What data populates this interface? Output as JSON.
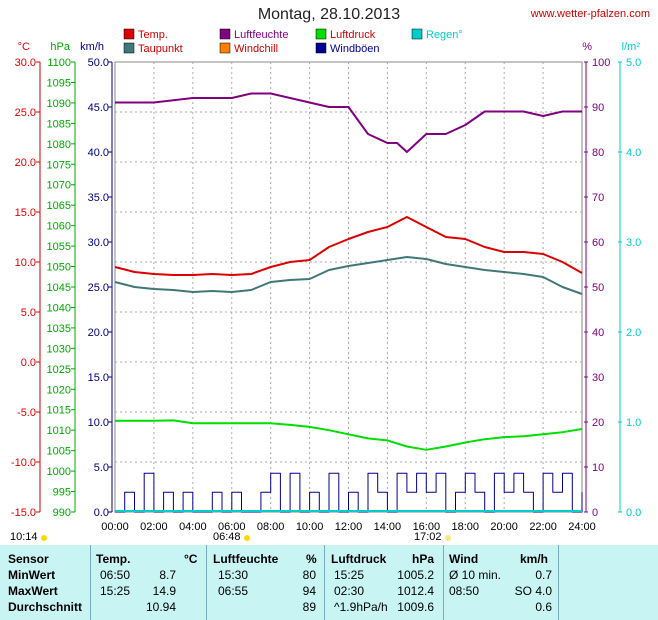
{
  "header": {
    "title": "Montag, 28.10.2013",
    "url": "www.wetter-pfalzen.com"
  },
  "legend": [
    {
      "label": "Temp.",
      "color": "#dd0000"
    },
    {
      "label": "Luftfeuchte",
      "color": "#800080"
    },
    {
      "label": "Luftdruck",
      "color": "#00dd00"
    },
    {
      "label": "Regen°",
      "color": "#00cccc"
    },
    {
      "label": "Taupunkt",
      "color": "#407878"
    },
    {
      "label": "Windchill",
      "color": "#ff8000"
    },
    {
      "label": "Windböen",
      "color": "#000090"
    }
  ],
  "sun": {
    "sunrise_label": "10:14",
    "sunrise_time": "06:48",
    "sunset_time": "17:02"
  },
  "chart_data": {
    "type": "line",
    "x_range": [
      "00:00",
      "24:00"
    ],
    "x_ticks": [
      "00:00",
      "02:00",
      "04:00",
      "06:00",
      "08:00",
      "10:00",
      "12:00",
      "14:00",
      "16:00",
      "18:00",
      "20:00",
      "22:00",
      "24:00"
    ],
    "axes": {
      "temp": {
        "unit": "°C",
        "ticks": [
          "30.0",
          "25.0",
          "20.0",
          "15.0",
          "10.0",
          "5.0",
          "0.0",
          "-5.0",
          "-10.0",
          "-15.0"
        ],
        "range": [
          -15,
          30
        ],
        "color": "#dd0000"
      },
      "pressure": {
        "unit": "hPa",
        "ticks": [
          "1100",
          "1095",
          "1090",
          "1085",
          "1080",
          "1075",
          "1070",
          "1065",
          "1060",
          "1055",
          "1050",
          "1045",
          "1040",
          "1035",
          "1030",
          "1025",
          "1020",
          "1015",
          "1010",
          "1005",
          "1000",
          "995",
          "990"
        ],
        "range": [
          990,
          1100
        ],
        "color": "#00aa00"
      },
      "wind": {
        "unit": "km/h",
        "ticks": [
          "50.0",
          "45.0",
          "40.0",
          "35.0",
          "30.0",
          "25.0",
          "20.0",
          "15.0",
          "10.0",
          "5.0",
          "0.0"
        ],
        "range": [
          0,
          50
        ],
        "color": "#000080"
      },
      "humidity": {
        "unit": "%",
        "ticks": [
          "100",
          "90",
          "80",
          "70",
          "60",
          "50",
          "40",
          "30",
          "20",
          "10",
          "0"
        ],
        "range": [
          0,
          100
        ],
        "color": "#800080"
      },
      "rain": {
        "unit": "l/m²",
        "ticks": [
          "5.0",
          "4.0",
          "3.0",
          "2.0",
          "1.0",
          "0.0"
        ],
        "range": [
          0,
          5
        ],
        "color": "#00cccc"
      }
    },
    "series": [
      {
        "name": "Temp.",
        "axis": "temp",
        "color": "#dd0000",
        "x": [
          0,
          1,
          2,
          3,
          4,
          5,
          6,
          7,
          8,
          9,
          10,
          11,
          12,
          13,
          14,
          14.5,
          15,
          15.5,
          16,
          17,
          18,
          19,
          20,
          21,
          22,
          23,
          24
        ],
        "y": [
          9.5,
          9.0,
          8.8,
          8.7,
          8.7,
          8.8,
          8.7,
          8.8,
          9.5,
          10.0,
          10.2,
          11.5,
          12.3,
          13.0,
          13.5,
          14.0,
          14.5,
          14.0,
          13.5,
          12.5,
          12.3,
          11.5,
          11.0,
          11.0,
          10.8,
          10.0,
          8.9
        ]
      },
      {
        "name": "Taupunkt",
        "axis": "temp",
        "color": "#407878",
        "x": [
          0,
          1,
          2,
          3,
          4,
          5,
          6,
          7,
          8,
          9,
          10,
          11,
          12,
          13,
          14,
          15,
          16,
          17,
          18,
          19,
          20,
          21,
          22,
          23,
          24
        ],
        "y": [
          8.0,
          7.5,
          7.3,
          7.2,
          7.0,
          7.1,
          7.0,
          7.2,
          8.0,
          8.2,
          8.3,
          9.2,
          9.6,
          9.9,
          10.2,
          10.5,
          10.3,
          9.8,
          9.5,
          9.2,
          9.0,
          8.8,
          8.5,
          7.5,
          6.8
        ]
      },
      {
        "name": "Luftfeuchte",
        "axis": "humidity",
        "color": "#800080",
        "x": [
          0,
          2,
          4,
          6,
          7,
          8,
          9,
          10,
          11,
          12,
          12.5,
          13,
          14,
          14.5,
          15,
          15.5,
          16,
          17,
          18,
          19,
          20,
          21,
          22,
          23,
          24
        ],
        "y": [
          91,
          91,
          92,
          92,
          93,
          93,
          92,
          91,
          90,
          90,
          87,
          84,
          82,
          82,
          80,
          82,
          84,
          84,
          86,
          89,
          89,
          89,
          88,
          89,
          89
        ]
      },
      {
        "name": "Luftdruck",
        "axis": "pressure",
        "color": "#00dd00",
        "x": [
          0,
          2,
          3,
          4,
          6,
          8,
          9,
          10,
          11,
          12,
          13,
          14,
          15,
          16,
          17,
          18,
          19,
          20,
          21,
          22,
          23,
          24
        ],
        "y": [
          1012.3,
          1012.3,
          1012.4,
          1011.7,
          1011.7,
          1011.7,
          1011.3,
          1010.8,
          1010.0,
          1009.0,
          1008.0,
          1007.5,
          1006.0,
          1005.2,
          1006.0,
          1007.0,
          1007.8,
          1008.3,
          1008.5,
          1009.0,
          1009.5,
          1010.3
        ]
      },
      {
        "name": "Windböen",
        "axis": "wind",
        "color": "#000090",
        "x": [
          0,
          0.5,
          1,
          1.5,
          2,
          2.5,
          3,
          3.5,
          4,
          4.5,
          5,
          5.5,
          6,
          6.5,
          7,
          7.5,
          8,
          8.5,
          9,
          9.5,
          10,
          10.5,
          11,
          11.5,
          12,
          12.5,
          13,
          13.5,
          14,
          14.5,
          15,
          15.5,
          16,
          16.5,
          17,
          17.5,
          18,
          18.5,
          19,
          19.5,
          20,
          20.5,
          21,
          21.5,
          22,
          22.5,
          23,
          23.5,
          24
        ],
        "y": [
          0,
          2.2,
          0,
          4.3,
          0,
          2.2,
          0,
          2.2,
          0,
          0,
          2.2,
          0,
          2.2,
          0,
          0,
          2.2,
          4.3,
          0,
          4.3,
          0,
          2.2,
          0,
          4.3,
          0,
          2.2,
          0,
          4.3,
          2.2,
          0,
          4.3,
          2.2,
          4.3,
          2.2,
          4.3,
          0,
          2.2,
          4.3,
          2.2,
          0,
          4.3,
          2.2,
          4.3,
          2.2,
          0,
          4.3,
          2.2,
          4.3,
          0,
          2.2
        ]
      }
    ]
  },
  "stats": {
    "headers": {
      "sensor": "Sensor",
      "temp": "Temp.",
      "temp_unit": "°C",
      "hum": "Luftfeuchte",
      "hum_unit": "%",
      "press": "Luftdruck",
      "press_unit": "hPa",
      "wind": "Wind",
      "wind_unit": "km/h"
    },
    "rows": [
      {
        "label": "MinWert",
        "temp_time": "06:50",
        "temp": "8.7",
        "hum_time": "15:30",
        "hum": "80",
        "press_time": "15:25",
        "press": "1005.2",
        "wind_time": "Ø 10 min.",
        "wind": "0.7"
      },
      {
        "label": "MaxWert",
        "temp_time": "15:25",
        "temp": "14.9",
        "hum_time": "06:55",
        "hum": "94",
        "press_time": "02:30",
        "press": "1012.4",
        "wind_time": "08:50",
        "wind": "SO 4.0"
      },
      {
        "label": "Durchschnitt",
        "temp_time": "",
        "temp": "10.94",
        "hum_time": "",
        "hum": "89",
        "press_time": "^1.9hPa/h",
        "press": "1009.6",
        "wind_time": "",
        "wind": "0.6"
      }
    ]
  }
}
